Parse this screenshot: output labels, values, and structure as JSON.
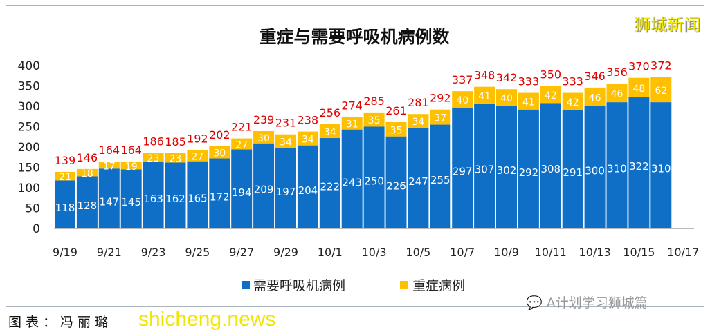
{
  "brand": "狮城新闻",
  "footer": "图表：冯丽璐",
  "watermark": "shicheng.news",
  "wechat_tag": "A计划学习狮城篇",
  "chart_data": {
    "type": "bar",
    "stacked": true,
    "title": "重症与需要呼吸机病例数",
    "xlabel": "",
    "ylabel": "",
    "ylim": [
      0,
      400
    ],
    "yticks": [
      0,
      50,
      100,
      150,
      200,
      250,
      300,
      350,
      400
    ],
    "grid": false,
    "legend_position": "bottom",
    "x_tick_labels": [
      "9/19",
      "9/21",
      "9/23",
      "9/25",
      "9/27",
      "9/29",
      "10/1",
      "10/3",
      "10/5",
      "10/7",
      "10/9",
      "10/11",
      "10/13",
      "10/15",
      "10/17"
    ],
    "categories": [
      "9/19",
      "9/20",
      "9/21",
      "9/22",
      "9/23",
      "9/24",
      "9/25",
      "9/26",
      "9/27",
      "9/28",
      "9/29",
      "9/30",
      "10/1",
      "10/2",
      "10/3",
      "10/4",
      "10/5",
      "10/6",
      "10/7",
      "10/8",
      "10/9",
      "10/10",
      "10/11",
      "10/12",
      "10/13",
      "10/14",
      "10/15",
      "10/16"
    ],
    "series": [
      {
        "name": "需要呼吸机病例",
        "color": "#0f6fc6",
        "values": [
          118,
          128,
          147,
          145,
          163,
          162,
          165,
          172,
          194,
          209,
          197,
          204,
          222,
          243,
          250,
          226,
          247,
          255,
          297,
          307,
          302,
          292,
          308,
          291,
          300,
          310,
          322,
          310
        ]
      },
      {
        "name": "重症病例",
        "color": "#ffc000",
        "values": [
          21,
          18,
          17,
          19,
          23,
          23,
          27,
          30,
          27,
          30,
          34,
          34,
          34,
          31,
          35,
          35,
          34,
          37,
          40,
          41,
          40,
          41,
          42,
          42,
          46,
          46,
          48,
          62
        ]
      }
    ],
    "totals": [
      139,
      146,
      164,
      164,
      186,
      185,
      192,
      202,
      221,
      239,
      231,
      238,
      256,
      274,
      285,
      261,
      281,
      292,
      337,
      348,
      342,
      333,
      350,
      333,
      346,
      356,
      370,
      372
    ],
    "total_label_color": "#e00000"
  }
}
